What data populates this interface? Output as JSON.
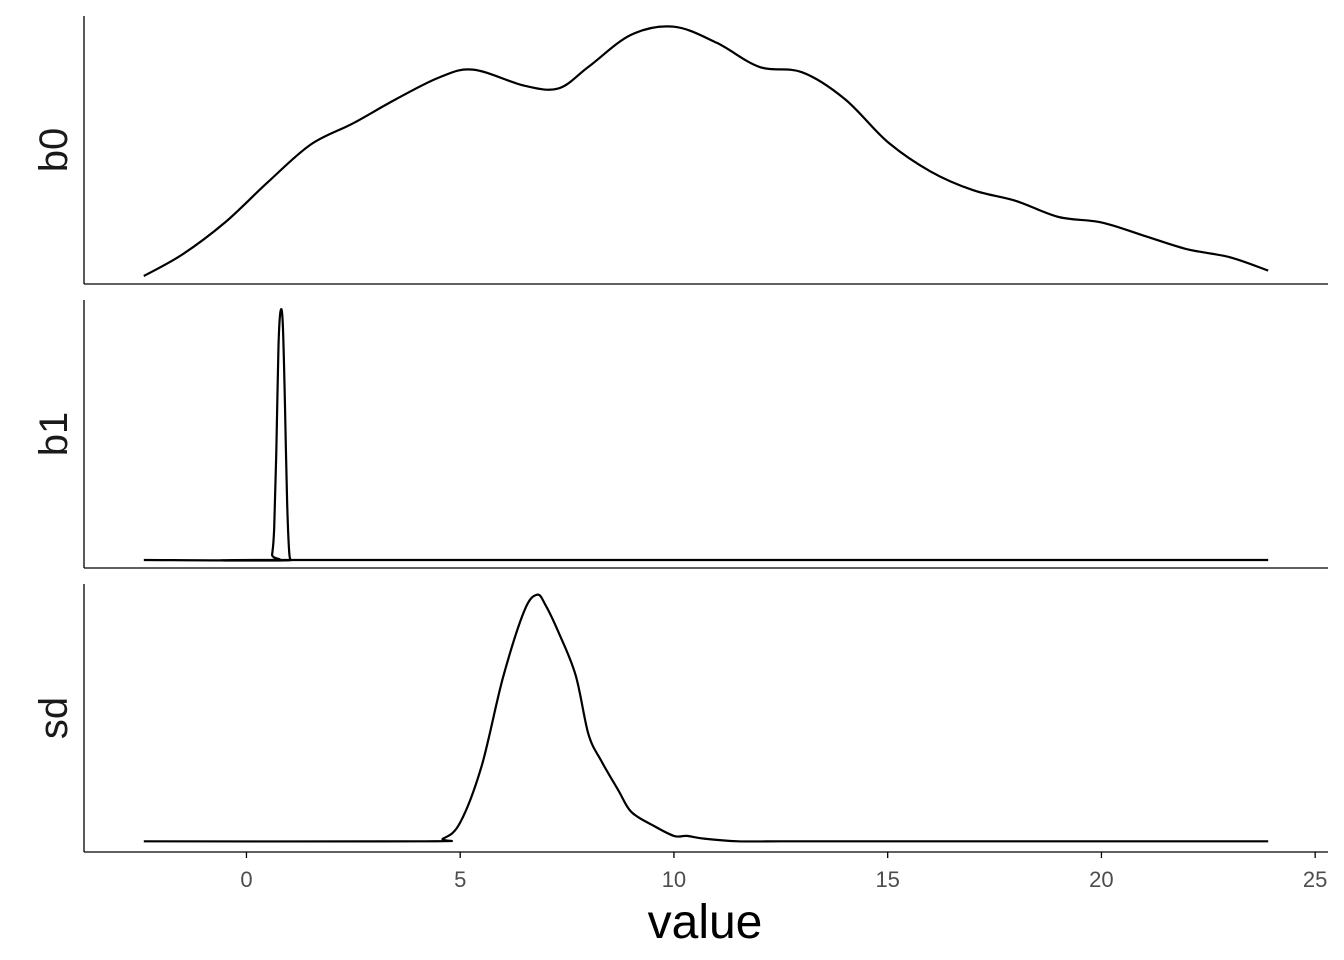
{
  "chart_data": {
    "type": "line",
    "xlabel": "value",
    "xlim": [
      -3.8,
      25.3
    ],
    "xticks": [
      0,
      5,
      10,
      15,
      20,
      25
    ],
    "xtick_labels": [
      "0",
      "5",
      "10",
      "15",
      "20",
      "25"
    ],
    "grid": false,
    "legend": "none",
    "panels": [
      {
        "name": "b0",
        "ylim": [
          0,
          1.0
        ],
        "x": [
          -2.4,
          -1.5,
          -0.5,
          0.5,
          1.5,
          2.5,
          3.5,
          4.5,
          5.3,
          6.5,
          7.3,
          8.0,
          9.0,
          10.0,
          11.0,
          12.0,
          13.0,
          14.0,
          15.0,
          16.0,
          17.0,
          18.0,
          19.0,
          20.0,
          21.0,
          22.0,
          23.0,
          23.9
        ],
        "y": [
          0.03,
          0.11,
          0.23,
          0.38,
          0.52,
          0.6,
          0.69,
          0.77,
          0.8,
          0.74,
          0.73,
          0.81,
          0.93,
          0.96,
          0.9,
          0.81,
          0.79,
          0.69,
          0.53,
          0.42,
          0.35,
          0.31,
          0.25,
          0.23,
          0.18,
          0.13,
          0.1,
          0.05
        ]
      },
      {
        "name": "b1",
        "ylim": [
          0,
          1.0
        ],
        "x": [
          -2.4,
          0.55,
          0.6,
          0.65,
          0.7,
          0.75,
          0.8,
          0.85,
          0.9,
          0.95,
          1.0,
          1.05,
          1.1,
          23.9
        ],
        "y": [
          0.03,
          0.03,
          0.05,
          0.15,
          0.45,
          0.83,
          0.96,
          0.91,
          0.62,
          0.25,
          0.06,
          0.03,
          0.03,
          0.03
        ]
      },
      {
        "name": "sd",
        "ylim": [
          0,
          1.0
        ],
        "x": [
          -2.4,
          4.2,
          4.6,
          5.0,
          5.5,
          6.0,
          6.5,
          6.8,
          7.0,
          7.3,
          7.7,
          8.0,
          8.3,
          8.7,
          9.0,
          9.5,
          10.0,
          10.3,
          10.7,
          11.5,
          12.5,
          13.5,
          23.9
        ],
        "y": [
          0.04,
          0.04,
          0.05,
          0.11,
          0.32,
          0.65,
          0.9,
          0.96,
          0.92,
          0.82,
          0.66,
          0.44,
          0.34,
          0.23,
          0.15,
          0.1,
          0.06,
          0.06,
          0.05,
          0.04,
          0.04,
          0.04,
          0.04
        ]
      }
    ]
  }
}
